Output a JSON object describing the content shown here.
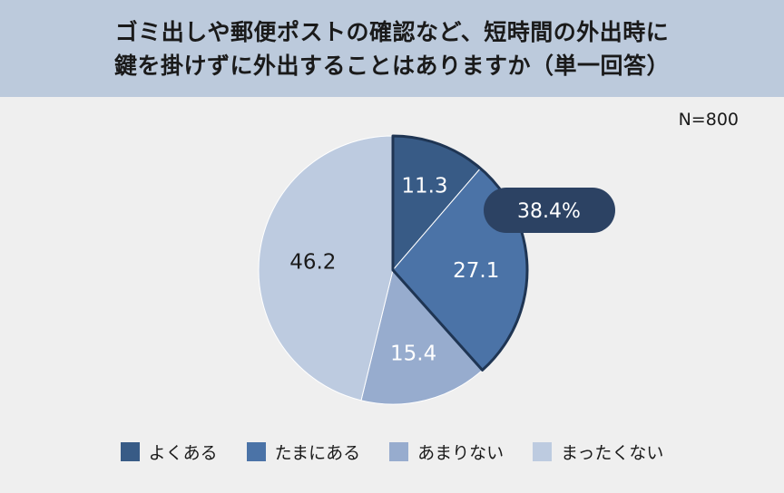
{
  "header": {
    "title_line1": "ゴミ出しや郵便ポストの確認など、短時間の外出時に",
    "title_line2": "鍵を掛けずに外出することはありますか（単一回答）"
  },
  "note": "N=800",
  "chart_data": {
    "type": "pie",
    "categories": [
      "よくある",
      "たまにある",
      "あまりない",
      "まったくない"
    ],
    "values": [
      11.3,
      27.1,
      15.4,
      46.2
    ],
    "value_labels": [
      "11.3",
      "27.1",
      "15.4",
      "46.2"
    ],
    "colors": [
      "#385b86",
      "#4b73a7",
      "#97acce",
      "#bdcbe0"
    ],
    "start": "12 o'clock, clockwise",
    "callout": {
      "text": "38.4%",
      "covers": [
        "よくある",
        "たまにある"
      ],
      "color": "#2c4263"
    },
    "legend_position": "bottom"
  }
}
